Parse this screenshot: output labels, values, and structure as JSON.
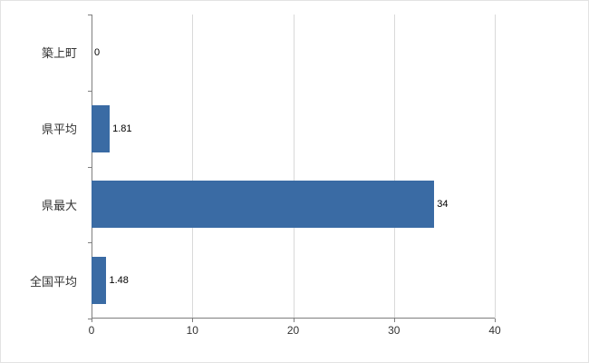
{
  "chart_data": {
    "type": "bar",
    "orientation": "horizontal",
    "title": "",
    "categories": [
      "築上町",
      "県平均",
      "県最大",
      "全国平均"
    ],
    "values": [
      0,
      1.81,
      34,
      1.48
    ],
    "value_labels": [
      "0",
      "1.81",
      "34",
      "1.48"
    ],
    "x_ticks": [
      0,
      10,
      20,
      30,
      40
    ],
    "x_tick_labels": [
      "0",
      "10",
      "20",
      "30",
      "40"
    ],
    "xlim": [
      0,
      40
    ],
    "grid": true,
    "legend": "none",
    "colors": {
      "bar": "#3A6BA4",
      "gridline": "#D9D9D9",
      "axis": "#7F7F7F",
      "text": "#333333"
    }
  }
}
